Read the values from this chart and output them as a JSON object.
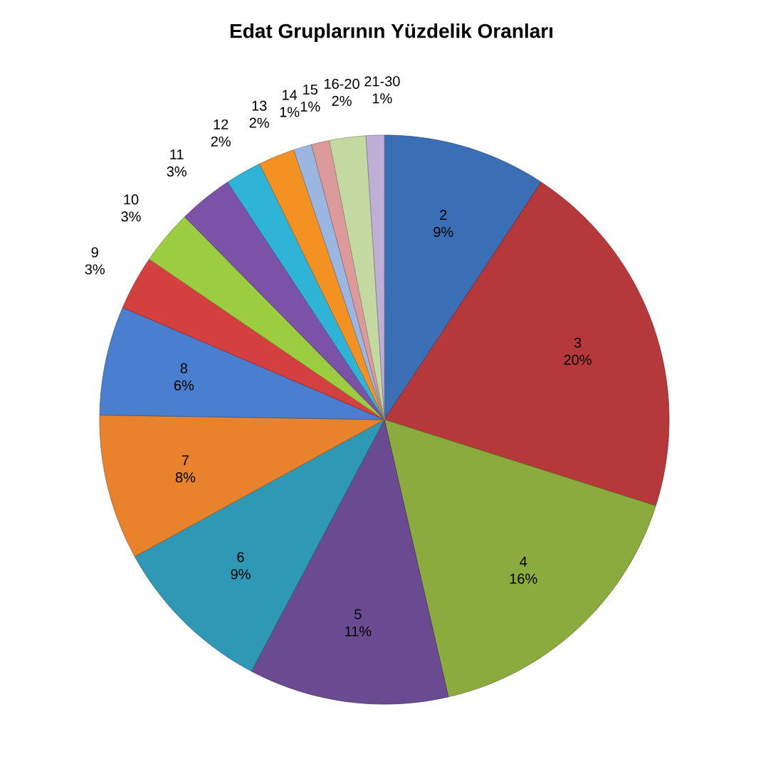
{
  "chart_data": {
    "type": "pie",
    "title": "Edat Gruplarının Yüzdelik Oranları",
    "categories": [
      "2",
      "3",
      "4",
      "5",
      "6",
      "7",
      "8",
      "9",
      "10",
      "11",
      "12",
      "13",
      "14",
      "15",
      "16-20",
      "21-30"
    ],
    "values": [
      9,
      20,
      16,
      11,
      9,
      8,
      6,
      3,
      3,
      3,
      2,
      2,
      1,
      1,
      2,
      1
    ],
    "value_labels": [
      "9%",
      "20%",
      "16%",
      "11%",
      "9%",
      "8%",
      "6%",
      "3%",
      "3%",
      "3%",
      "2%",
      "2%",
      "1%",
      "1%",
      "2%",
      "1%"
    ],
    "colors": [
      "#3a6eb5",
      "#b5393a",
      "#8bab3e",
      "#6a4a91",
      "#2f98b5",
      "#e8822c",
      "#4a7fd0",
      "#d43f3f",
      "#9ccc3f",
      "#7b52a8",
      "#2fb3d6",
      "#f39222",
      "#9bb6e0",
      "#dd9a9a",
      "#c4d9a2",
      "#bfaed6"
    ]
  }
}
